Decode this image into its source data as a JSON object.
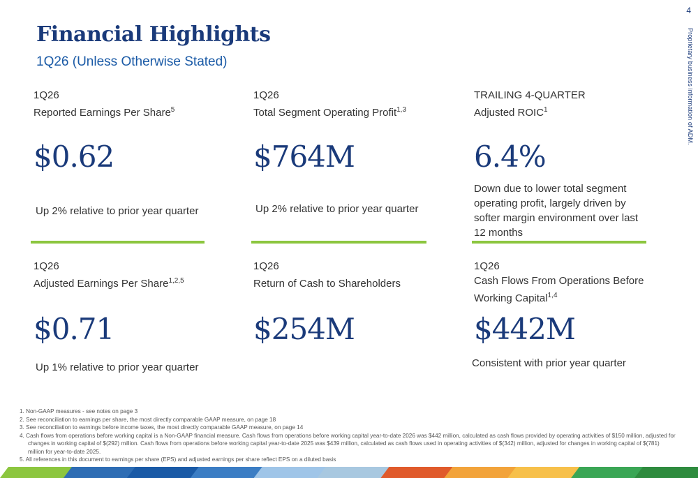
{
  "page_number": "4",
  "side_label": "Proprietary business information of ADM.",
  "title": "Financial Highlights",
  "subtitle": "1Q26 (Unless Otherwise Stated)",
  "cards": [
    {
      "period": "1Q26",
      "label": "Reported Earnings Per Share",
      "sup": "5",
      "value": "$0.62",
      "desc": "Up 2% relative to prior year quarter"
    },
    {
      "period": "1Q26",
      "label": "Total Segment Operating Profit",
      "sup": "1,3",
      "value": "$764M",
      "desc": "Up 2% relative to prior year quarter"
    },
    {
      "period": "TRAILING 4-QUARTER",
      "label": "Adjusted ROIC",
      "sup": "1",
      "value": "6.4%",
      "desc": "Down due to lower total segment operating profit, largely driven by softer margin environment over last 12 months"
    },
    {
      "period": "1Q26",
      "label": "Adjusted Earnings Per Share",
      "sup": "1,2,5",
      "value": "$0.71",
      "desc": "Up 1% relative to prior year quarter"
    },
    {
      "period": "1Q26",
      "label": "Return of Cash to Shareholders",
      "sup": "",
      "value": "$254M",
      "desc": ""
    },
    {
      "period": "1Q26",
      "label": "Cash Flows From Operations Before Working Capital",
      "sup": "1,4",
      "value": "$442M",
      "desc": "Consistent with prior year quarter"
    }
  ],
  "footnotes": [
    "1. Non-GAAP measures - see notes on page 3",
    "2. See reconciliation to earnings per share, the most directly comparable GAAP measure, on page 18",
    "3. See reconciliation to earnings before income taxes, the most directly comparable GAAP measure, on page 14",
    "4. Cash flows from operations before working capital is a Non-GAAP financial measure. Cash flows from operations before working capital year-to-date 2026 was $442 million, calculated as cash flows provided by operating activities of $150 million, adjusted for changes in working capital of $(292) million. Cash flows from operations before working capital year-to-date 2025 was $439 million, calculated as cash flows used in operating activities of $(342) million, adjusted for changes in working capital of $(781) million for year-to-date 2025.",
    "5. All references in this document to earnings per share (EPS) and adjusted earnings per share reflect EPS on a diluted basis"
  ],
  "colors": {
    "title": "#1a3a7a",
    "subtitle": "#1a5aa6",
    "divider": "#8cc63f",
    "bar": [
      "#8cc63f",
      "#2e6db4",
      "#1a5aa6",
      "#3b7dc4",
      "#9fc5e8",
      "#a8c8e0",
      "#e05a2b",
      "#f2a33a",
      "#f7c04a",
      "#3aa655",
      "#2e8b3e"
    ]
  }
}
